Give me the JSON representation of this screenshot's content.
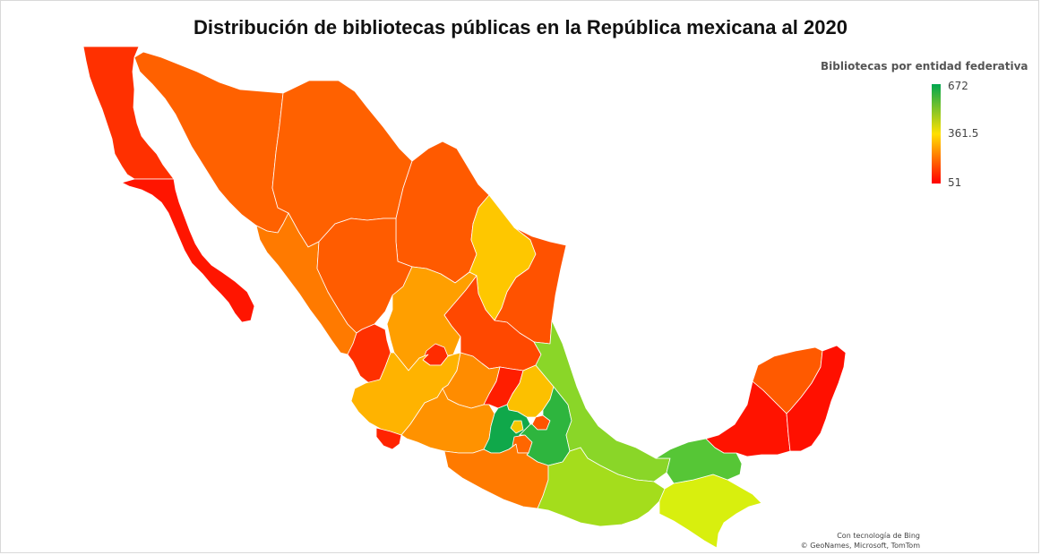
{
  "title": "Distribución de bibliotecas públicas en la República mexicana al 2020",
  "legend": {
    "title": "Bibliotecas por entidad federativa",
    "max_label": "672",
    "mid_label": "361.5",
    "min_label": "51",
    "min": 51,
    "mid": 361.5,
    "max": 672,
    "colors": {
      "low": "#ff0000",
      "mid": "#ffe000",
      "high": "#00a650"
    }
  },
  "attribution": {
    "line1": "Con tecnología de Bing",
    "line2": "© GeoNames, Microsoft, TomTom"
  },
  "regions": [
    {
      "id": "baja-california",
      "color": "#ff3000"
    },
    {
      "id": "baja-california-sur",
      "color": "#ff1500"
    },
    {
      "id": "sonora",
      "color": "#ff6100"
    },
    {
      "id": "chihuahua",
      "color": "#ff6100"
    },
    {
      "id": "coahuila",
      "color": "#ff5a00"
    },
    {
      "id": "nuevo-leon",
      "color": "#fec700"
    },
    {
      "id": "tamaulipas",
      "color": "#ff5200"
    },
    {
      "id": "sinaloa",
      "color": "#ff7a00"
    },
    {
      "id": "durango",
      "color": "#ff5c00"
    },
    {
      "id": "zacatecas",
      "color": "#ff9f00"
    },
    {
      "id": "san-luis-potosi",
      "color": "#ff4800"
    },
    {
      "id": "nayarit",
      "color": "#ff3000"
    },
    {
      "id": "aguascalientes",
      "color": "#ff2c00"
    },
    {
      "id": "jalisco",
      "color": "#ffb300"
    },
    {
      "id": "guanajuato",
      "color": "#ff8c00"
    },
    {
      "id": "queretaro",
      "color": "#ff1e00"
    },
    {
      "id": "hidalgo",
      "color": "#fcc000"
    },
    {
      "id": "colima",
      "color": "#ff2400"
    },
    {
      "id": "michoacan",
      "color": "#ff9200"
    },
    {
      "id": "estado-de-mexico",
      "color": "#10a84a"
    },
    {
      "id": "ciudad-de-mexico",
      "color": "#f2c700"
    },
    {
      "id": "morelos",
      "color": "#ff6600"
    },
    {
      "id": "tlaxcala",
      "color": "#ff5400"
    },
    {
      "id": "puebla",
      "color": "#2eb53e"
    },
    {
      "id": "veracruz",
      "color": "#8ad628"
    },
    {
      "id": "guerrero",
      "color": "#ff7a00"
    },
    {
      "id": "oaxaca",
      "color": "#a4dd1c"
    },
    {
      "id": "chiapas",
      "color": "#d8ef0e"
    },
    {
      "id": "tabasco",
      "color": "#56c636"
    },
    {
      "id": "campeche",
      "color": "#ff1300"
    },
    {
      "id": "yucatan",
      "color": "#ff5a00"
    },
    {
      "id": "quintana-roo",
      "color": "#ff1000"
    }
  ]
}
